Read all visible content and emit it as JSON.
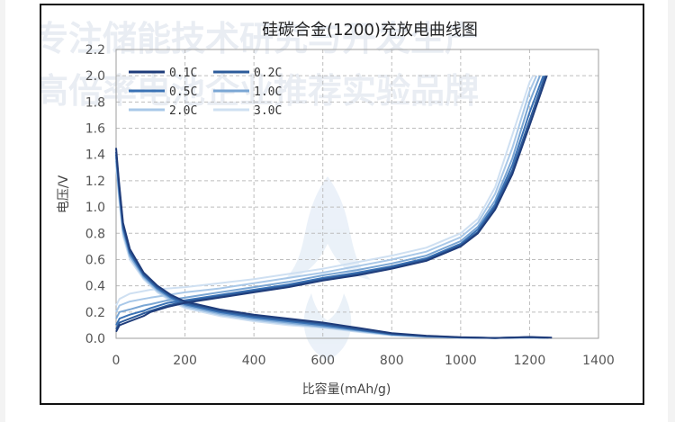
{
  "watermark": {
    "line1": "专注储能技术研究与开发生产",
    "line2": "高倍率电池企业推荐实验品牌"
  },
  "chart_data": {
    "type": "line",
    "title": "硅碳合金(1200)充放电曲线图",
    "xlabel": "比容量(mAh/g)",
    "ylabel": "电压/V",
    "xlim": [
      0,
      1400
    ],
    "ylim": [
      0,
      2.2
    ],
    "xticks": [
      0,
      200,
      400,
      600,
      800,
      1000,
      1200,
      1400
    ],
    "yticks": [
      0.0,
      0.2,
      0.4,
      0.6,
      0.8,
      1.0,
      1.2,
      1.4,
      1.6,
      1.8,
      2.0,
      2.2
    ],
    "grid": true,
    "legend_position": "top-left",
    "colors": {
      "0.1C": "#1f3c7a",
      "0.2C": "#2d5b9a",
      "0.5C": "#3a72b5",
      "1.0C": "#7aa6d4",
      "2.0C": "#a9c8e8",
      "3.0C": "#cfe0f2"
    },
    "series": [
      {
        "name": "0.1C",
        "discharge": [
          [
            0,
            1.45
          ],
          [
            8,
            1.2
          ],
          [
            20,
            0.88
          ],
          [
            40,
            0.68
          ],
          [
            80,
            0.5
          ],
          [
            120,
            0.4
          ],
          [
            160,
            0.33
          ],
          [
            200,
            0.28
          ],
          [
            300,
            0.22
          ],
          [
            400,
            0.18
          ],
          [
            500,
            0.15
          ],
          [
            600,
            0.12
          ],
          [
            700,
            0.08
          ],
          [
            800,
            0.04
          ],
          [
            900,
            0.02
          ],
          [
            1000,
            0.008
          ],
          [
            1100,
            0.003
          ],
          [
            1200,
            0.01
          ],
          [
            1265,
            0.005
          ]
        ],
        "charge": [
          [
            0,
            0.05
          ],
          [
            10,
            0.1
          ],
          [
            40,
            0.13
          ],
          [
            80,
            0.17
          ],
          [
            100,
            0.2
          ],
          [
            150,
            0.24
          ],
          [
            200,
            0.27
          ],
          [
            300,
            0.31
          ],
          [
            400,
            0.35
          ],
          [
            500,
            0.39
          ],
          [
            600,
            0.44
          ],
          [
            700,
            0.48
          ],
          [
            800,
            0.53
          ],
          [
            900,
            0.59
          ],
          [
            1000,
            0.7
          ],
          [
            1050,
            0.8
          ],
          [
            1100,
            0.98
          ],
          [
            1150,
            1.25
          ],
          [
            1200,
            1.62
          ],
          [
            1250,
            2.0
          ]
        ]
      },
      {
        "name": "0.2C",
        "discharge": [
          [
            0,
            1.42
          ],
          [
            8,
            1.18
          ],
          [
            20,
            0.86
          ],
          [
            40,
            0.66
          ],
          [
            80,
            0.49
          ],
          [
            120,
            0.39
          ],
          [
            160,
            0.32
          ],
          [
            200,
            0.27
          ],
          [
            300,
            0.21
          ],
          [
            400,
            0.17
          ],
          [
            500,
            0.14
          ],
          [
            600,
            0.11
          ],
          [
            700,
            0.07
          ],
          [
            800,
            0.035
          ],
          [
            900,
            0.018
          ],
          [
            1000,
            0.007
          ],
          [
            1100,
            0.003
          ],
          [
            1200,
            0.009
          ],
          [
            1255,
            0.004
          ]
        ],
        "charge": [
          [
            0,
            0.07
          ],
          [
            10,
            0.12
          ],
          [
            40,
            0.15
          ],
          [
            80,
            0.19
          ],
          [
            100,
            0.21
          ],
          [
            150,
            0.25
          ],
          [
            200,
            0.28
          ],
          [
            300,
            0.32
          ],
          [
            400,
            0.36
          ],
          [
            500,
            0.4
          ],
          [
            600,
            0.45
          ],
          [
            700,
            0.49
          ],
          [
            800,
            0.54
          ],
          [
            900,
            0.6
          ],
          [
            1000,
            0.71
          ],
          [
            1050,
            0.81
          ],
          [
            1100,
            1.0
          ],
          [
            1150,
            1.28
          ],
          [
            1200,
            1.66
          ],
          [
            1245,
            2.0
          ]
        ]
      },
      {
        "name": "0.5C",
        "discharge": [
          [
            0,
            1.4
          ],
          [
            8,
            1.15
          ],
          [
            20,
            0.84
          ],
          [
            40,
            0.65
          ],
          [
            80,
            0.48
          ],
          [
            120,
            0.38
          ],
          [
            160,
            0.31
          ],
          [
            200,
            0.26
          ],
          [
            300,
            0.2
          ],
          [
            400,
            0.16
          ],
          [
            500,
            0.13
          ],
          [
            600,
            0.1
          ],
          [
            700,
            0.065
          ],
          [
            800,
            0.03
          ],
          [
            900,
            0.015
          ],
          [
            1000,
            0.006
          ],
          [
            1100,
            0.003
          ],
          [
            1200,
            0.008
          ],
          [
            1245,
            0.004
          ]
        ],
        "charge": [
          [
            0,
            0.1
          ],
          [
            10,
            0.15
          ],
          [
            40,
            0.18
          ],
          [
            80,
            0.21
          ],
          [
            100,
            0.23
          ],
          [
            150,
            0.27
          ],
          [
            200,
            0.29
          ],
          [
            300,
            0.33
          ],
          [
            400,
            0.37
          ],
          [
            500,
            0.41
          ],
          [
            600,
            0.46
          ],
          [
            700,
            0.5
          ],
          [
            800,
            0.55
          ],
          [
            900,
            0.61
          ],
          [
            1000,
            0.72
          ],
          [
            1050,
            0.83
          ],
          [
            1100,
            1.02
          ],
          [
            1150,
            1.32
          ],
          [
            1200,
            1.72
          ],
          [
            1240,
            2.0
          ]
        ]
      },
      {
        "name": "1.0C",
        "discharge": [
          [
            0,
            1.38
          ],
          [
            8,
            1.12
          ],
          [
            20,
            0.82
          ],
          [
            40,
            0.63
          ],
          [
            80,
            0.47
          ],
          [
            120,
            0.37
          ],
          [
            160,
            0.3
          ],
          [
            200,
            0.25
          ],
          [
            300,
            0.19
          ],
          [
            400,
            0.15
          ],
          [
            500,
            0.12
          ],
          [
            600,
            0.09
          ],
          [
            700,
            0.06
          ],
          [
            800,
            0.028
          ],
          [
            900,
            0.014
          ],
          [
            1000,
            0.006
          ],
          [
            1100,
            0.003
          ],
          [
            1200,
            0.007
          ],
          [
            1235,
            0.004
          ]
        ],
        "charge": [
          [
            0,
            0.15
          ],
          [
            10,
            0.2
          ],
          [
            40,
            0.22
          ],
          [
            80,
            0.25
          ],
          [
            100,
            0.26
          ],
          [
            150,
            0.29
          ],
          [
            200,
            0.31
          ],
          [
            300,
            0.35
          ],
          [
            400,
            0.39
          ],
          [
            500,
            0.43
          ],
          [
            600,
            0.48
          ],
          [
            700,
            0.52
          ],
          [
            800,
            0.57
          ],
          [
            900,
            0.63
          ],
          [
            1000,
            0.74
          ],
          [
            1050,
            0.85
          ],
          [
            1100,
            1.05
          ],
          [
            1150,
            1.37
          ],
          [
            1200,
            1.8
          ],
          [
            1230,
            2.0
          ]
        ]
      },
      {
        "name": "2.0C",
        "discharge": [
          [
            0,
            1.35
          ],
          [
            8,
            1.1
          ],
          [
            20,
            0.8
          ],
          [
            40,
            0.62
          ],
          [
            80,
            0.46
          ],
          [
            120,
            0.36
          ],
          [
            160,
            0.29
          ],
          [
            200,
            0.24
          ],
          [
            300,
            0.18
          ],
          [
            400,
            0.14
          ],
          [
            500,
            0.11
          ],
          [
            600,
            0.085
          ],
          [
            700,
            0.055
          ],
          [
            800,
            0.025
          ],
          [
            900,
            0.012
          ],
          [
            1000,
            0.005
          ],
          [
            1100,
            0.003
          ],
          [
            1200,
            0.006
          ],
          [
            1225,
            0.004
          ]
        ],
        "charge": [
          [
            0,
            0.2
          ],
          [
            10,
            0.25
          ],
          [
            40,
            0.28
          ],
          [
            80,
            0.3
          ],
          [
            100,
            0.31
          ],
          [
            150,
            0.33
          ],
          [
            200,
            0.35
          ],
          [
            300,
            0.38
          ],
          [
            400,
            0.42
          ],
          [
            500,
            0.46
          ],
          [
            600,
            0.5
          ],
          [
            700,
            0.55
          ],
          [
            800,
            0.6
          ],
          [
            900,
            0.66
          ],
          [
            1000,
            0.77
          ],
          [
            1050,
            0.88
          ],
          [
            1100,
            1.1
          ],
          [
            1150,
            1.45
          ],
          [
            1200,
            1.88
          ],
          [
            1220,
            2.0
          ]
        ]
      },
      {
        "name": "3.0C",
        "discharge": [
          [
            0,
            1.32
          ],
          [
            8,
            1.08
          ],
          [
            20,
            0.78
          ],
          [
            40,
            0.6
          ],
          [
            80,
            0.45
          ],
          [
            120,
            0.35
          ],
          [
            160,
            0.28
          ],
          [
            200,
            0.23
          ],
          [
            300,
            0.17
          ],
          [
            400,
            0.13
          ],
          [
            500,
            0.1
          ],
          [
            600,
            0.08
          ],
          [
            700,
            0.05
          ],
          [
            800,
            0.022
          ],
          [
            900,
            0.01
          ],
          [
            1000,
            0.005
          ],
          [
            1100,
            0.003
          ],
          [
            1200,
            0.006
          ],
          [
            1215,
            0.004
          ]
        ],
        "charge": [
          [
            0,
            0.25
          ],
          [
            10,
            0.3
          ],
          [
            40,
            0.34
          ],
          [
            80,
            0.36
          ],
          [
            100,
            0.37
          ],
          [
            150,
            0.38
          ],
          [
            200,
            0.39
          ],
          [
            300,
            0.42
          ],
          [
            400,
            0.45
          ],
          [
            500,
            0.49
          ],
          [
            600,
            0.53
          ],
          [
            700,
            0.58
          ],
          [
            800,
            0.63
          ],
          [
            900,
            0.69
          ],
          [
            1000,
            0.8
          ],
          [
            1050,
            0.91
          ],
          [
            1100,
            1.15
          ],
          [
            1150,
            1.55
          ],
          [
            1200,
            1.95
          ],
          [
            1210,
            2.0
          ]
        ]
      }
    ]
  }
}
